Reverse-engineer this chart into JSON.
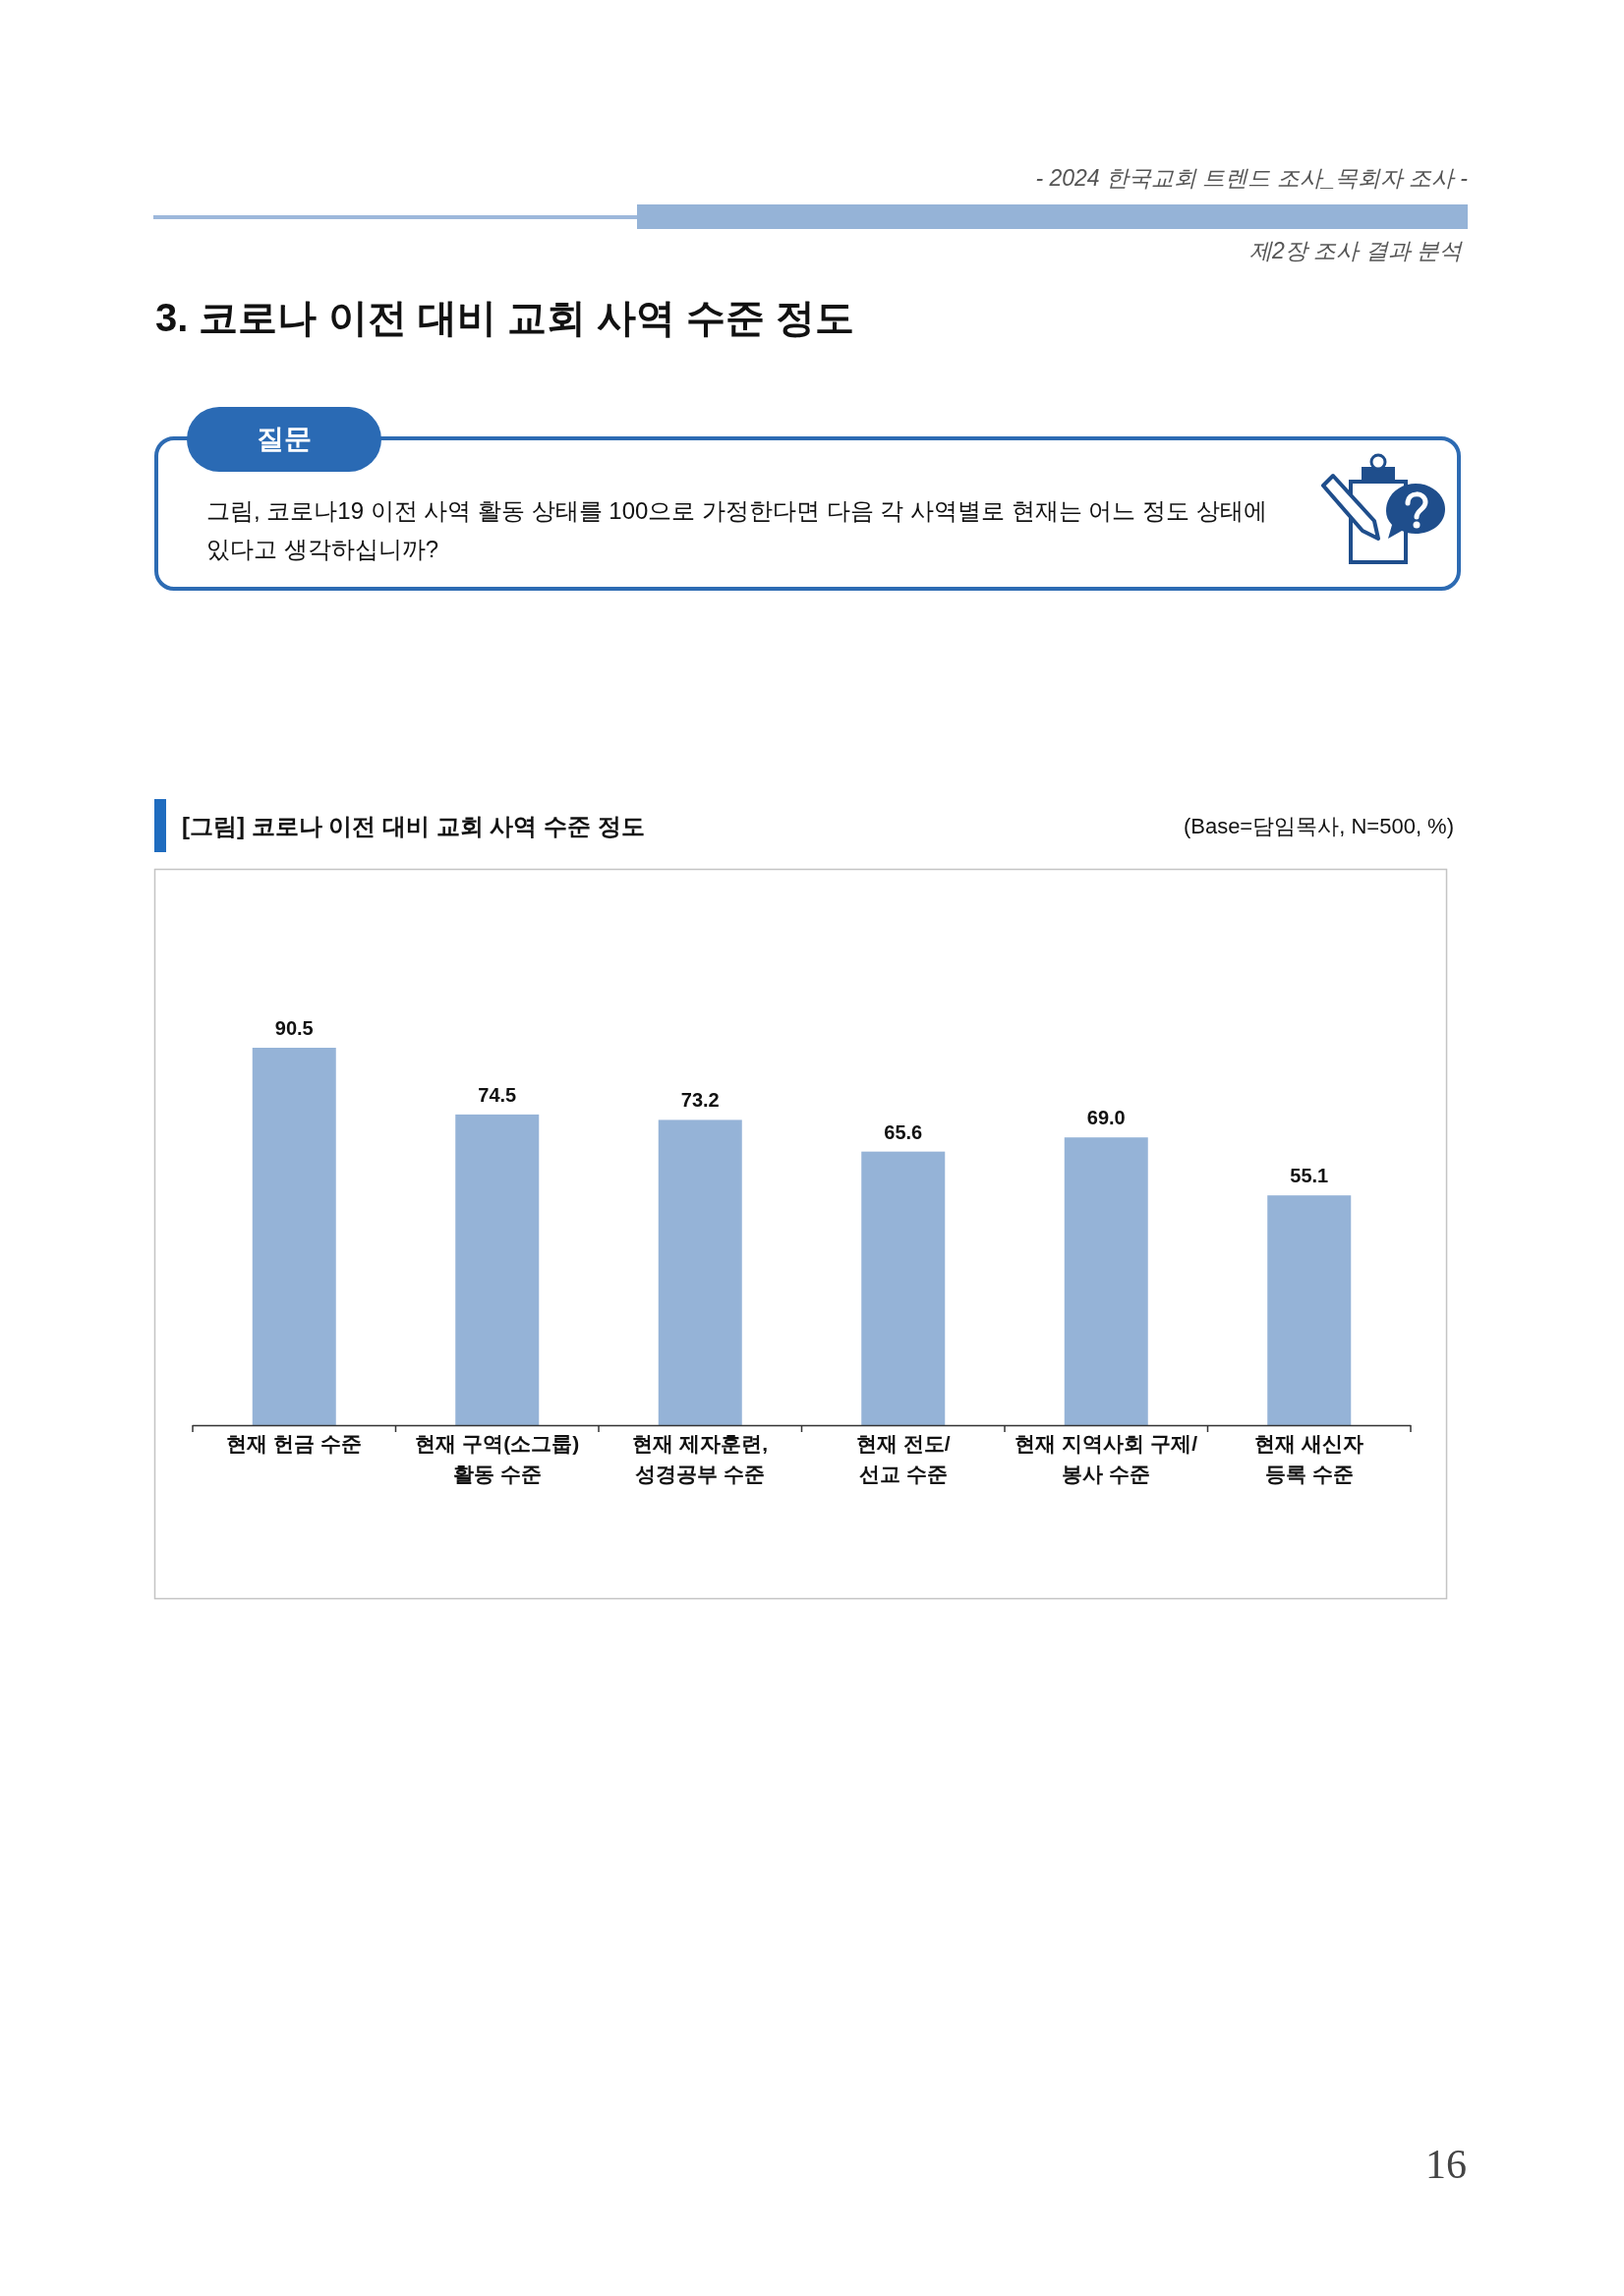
{
  "chart_data": {
    "type": "bar",
    "title": "[그림] 코로나 이전 대비 교회 사역 수준 정도",
    "subtitle": "(Base=담임목사, N=500, %)",
    "categories": [
      "현재 헌금 수준",
      "현재 구역(소그룹)\n활동 수준",
      "현재 제자훈련,\n성경공부 수준",
      "현재 전도/\n선교 수준",
      "현재 지역사회 구제/\n봉사 수준",
      "현재 새신자\n등록 수준"
    ],
    "values": [
      90.5,
      74.5,
      73.2,
      65.6,
      69.0,
      55.1
    ],
    "color": "#95b3d7",
    "value_labels": [
      "90.5",
      "74.5",
      "73.2",
      "65.6",
      "69.0",
      "55.1"
    ],
    "annotations": [
      "- 2024 한국교회 트렌드 조사_목회자 조사 -",
      "제2장 조사 결과 분석",
      "3. 코로나 이전 대비 교회 사역 수준 정도",
      "질문",
      "그림, 코로나19 이전 사역 활동 상태를 100으로 가정한다면 다음 각 사역별로 현재는 어느 정도 상태에 있다고 생각하십니까?",
      "16"
    ]
  }
}
